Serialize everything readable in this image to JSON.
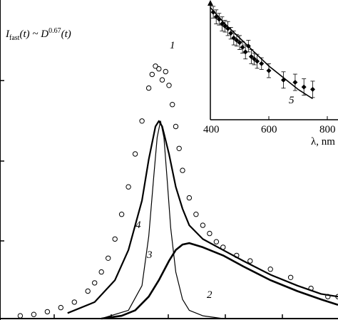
{
  "chart_data": [
    {
      "type": "line",
      "title": "",
      "annotation": {
        "base": "I",
        "base_sub": "fast",
        "mid": "(t) ~ ",
        "d": "D",
        "d_sup": "0.67",
        "tail": "(t)"
      },
      "xlabel": "",
      "ylabel": "",
      "xlim": [
        0,
        1
      ],
      "ylim": [
        0,
        1
      ],
      "grid": false,
      "series": [
        {
          "label": "1",
          "style": "circles",
          "x": [
            0.06,
            0.1,
            0.14,
            0.18,
            0.22,
            0.26,
            0.28,
            0.3,
            0.32,
            0.34,
            0.36,
            0.38,
            0.4,
            0.42,
            0.44,
            0.45,
            0.46,
            0.47,
            0.48,
            0.49,
            0.5,
            0.51,
            0.52,
            0.53,
            0.54,
            0.56,
            0.58,
            0.6,
            0.62,
            0.64,
            0.66,
            0.7,
            0.74,
            0.8,
            0.86,
            0.92,
            0.97,
            1.0
          ],
          "values": [
            0.01,
            0.015,
            0.025,
            0.04,
            0.06,
            0.1,
            0.13,
            0.17,
            0.22,
            0.29,
            0.38,
            0.48,
            0.6,
            0.72,
            0.84,
            0.89,
            0.92,
            0.91,
            0.87,
            0.9,
            0.85,
            0.78,
            0.7,
            0.62,
            0.54,
            0.44,
            0.38,
            0.34,
            0.31,
            0.28,
            0.26,
            0.23,
            0.21,
            0.18,
            0.15,
            0.11,
            0.08,
            0.08
          ]
        },
        {
          "label": "2",
          "style": "thick",
          "x": [
            0.3,
            0.36,
            0.4,
            0.44,
            0.47,
            0.5,
            0.52,
            0.54,
            0.56,
            0.6,
            0.66,
            0.72,
            0.8,
            0.88,
            0.95,
            1.0
          ],
          "values": [
            0.0,
            0.01,
            0.03,
            0.08,
            0.14,
            0.21,
            0.25,
            0.27,
            0.275,
            0.26,
            0.23,
            0.19,
            0.14,
            0.1,
            0.07,
            0.05
          ]
        },
        {
          "label": "3",
          "style": "thin",
          "x": [
            0.3,
            0.38,
            0.42,
            0.44,
            0.455,
            0.465,
            0.475,
            0.485,
            0.495,
            0.505,
            0.52,
            0.54,
            0.56,
            0.6,
            0.66,
            0.72
          ],
          "values": [
            0.0,
            0.03,
            0.12,
            0.3,
            0.52,
            0.66,
            0.72,
            0.66,
            0.5,
            0.33,
            0.17,
            0.07,
            0.03,
            0.01,
            0.0,
            0.0
          ]
        },
        {
          "label": "4",
          "style": "medium",
          "x": [
            0.2,
            0.28,
            0.34,
            0.38,
            0.42,
            0.44,
            0.46,
            0.47,
            0.48,
            0.5,
            0.52,
            0.54,
            0.56,
            0.6,
            0.66,
            0.72,
            0.8,
            0.88,
            0.95,
            1.0
          ],
          "values": [
            0.02,
            0.06,
            0.14,
            0.25,
            0.43,
            0.58,
            0.7,
            0.72,
            0.7,
            0.6,
            0.48,
            0.4,
            0.34,
            0.29,
            0.25,
            0.21,
            0.16,
            0.12,
            0.09,
            0.08
          ]
        }
      ]
    },
    {
      "type": "scatter",
      "title": "",
      "xlabel": "λ, nm",
      "ylabel": "",
      "xlim": [
        400,
        800
      ],
      "xticks": [
        400,
        600,
        800
      ],
      "grid": false,
      "series": [
        {
          "label": "5",
          "style": "points-with-errorbars",
          "x": [
            410,
            420,
            430,
            440,
            450,
            460,
            470,
            480,
            490,
            500,
            510,
            520,
            530,
            540,
            550,
            560,
            575,
            600,
            650,
            690,
            720,
            750
          ],
          "values": [
            0.92,
            0.88,
            0.86,
            0.82,
            0.8,
            0.78,
            0.74,
            0.7,
            0.68,
            0.66,
            0.62,
            0.58,
            0.63,
            0.54,
            0.52,
            0.5,
            0.48,
            0.42,
            0.34,
            0.32,
            0.28,
            0.26
          ],
          "errors": [
            0.05,
            0.06,
            0.05,
            0.06,
            0.05,
            0.06,
            0.05,
            0.06,
            0.05,
            0.06,
            0.05,
            0.06,
            0.05,
            0.06,
            0.05,
            0.06,
            0.05,
            0.06,
            0.07,
            0.07,
            0.07,
            0.07
          ]
        },
        {
          "label": "",
          "style": "fit-line",
          "x": [
            400,
            450,
            500,
            550,
            600,
            650,
            700,
            750
          ],
          "values": [
            0.96,
            0.82,
            0.7,
            0.58,
            0.46,
            0.36,
            0.26,
            0.18
          ]
        }
      ]
    }
  ]
}
